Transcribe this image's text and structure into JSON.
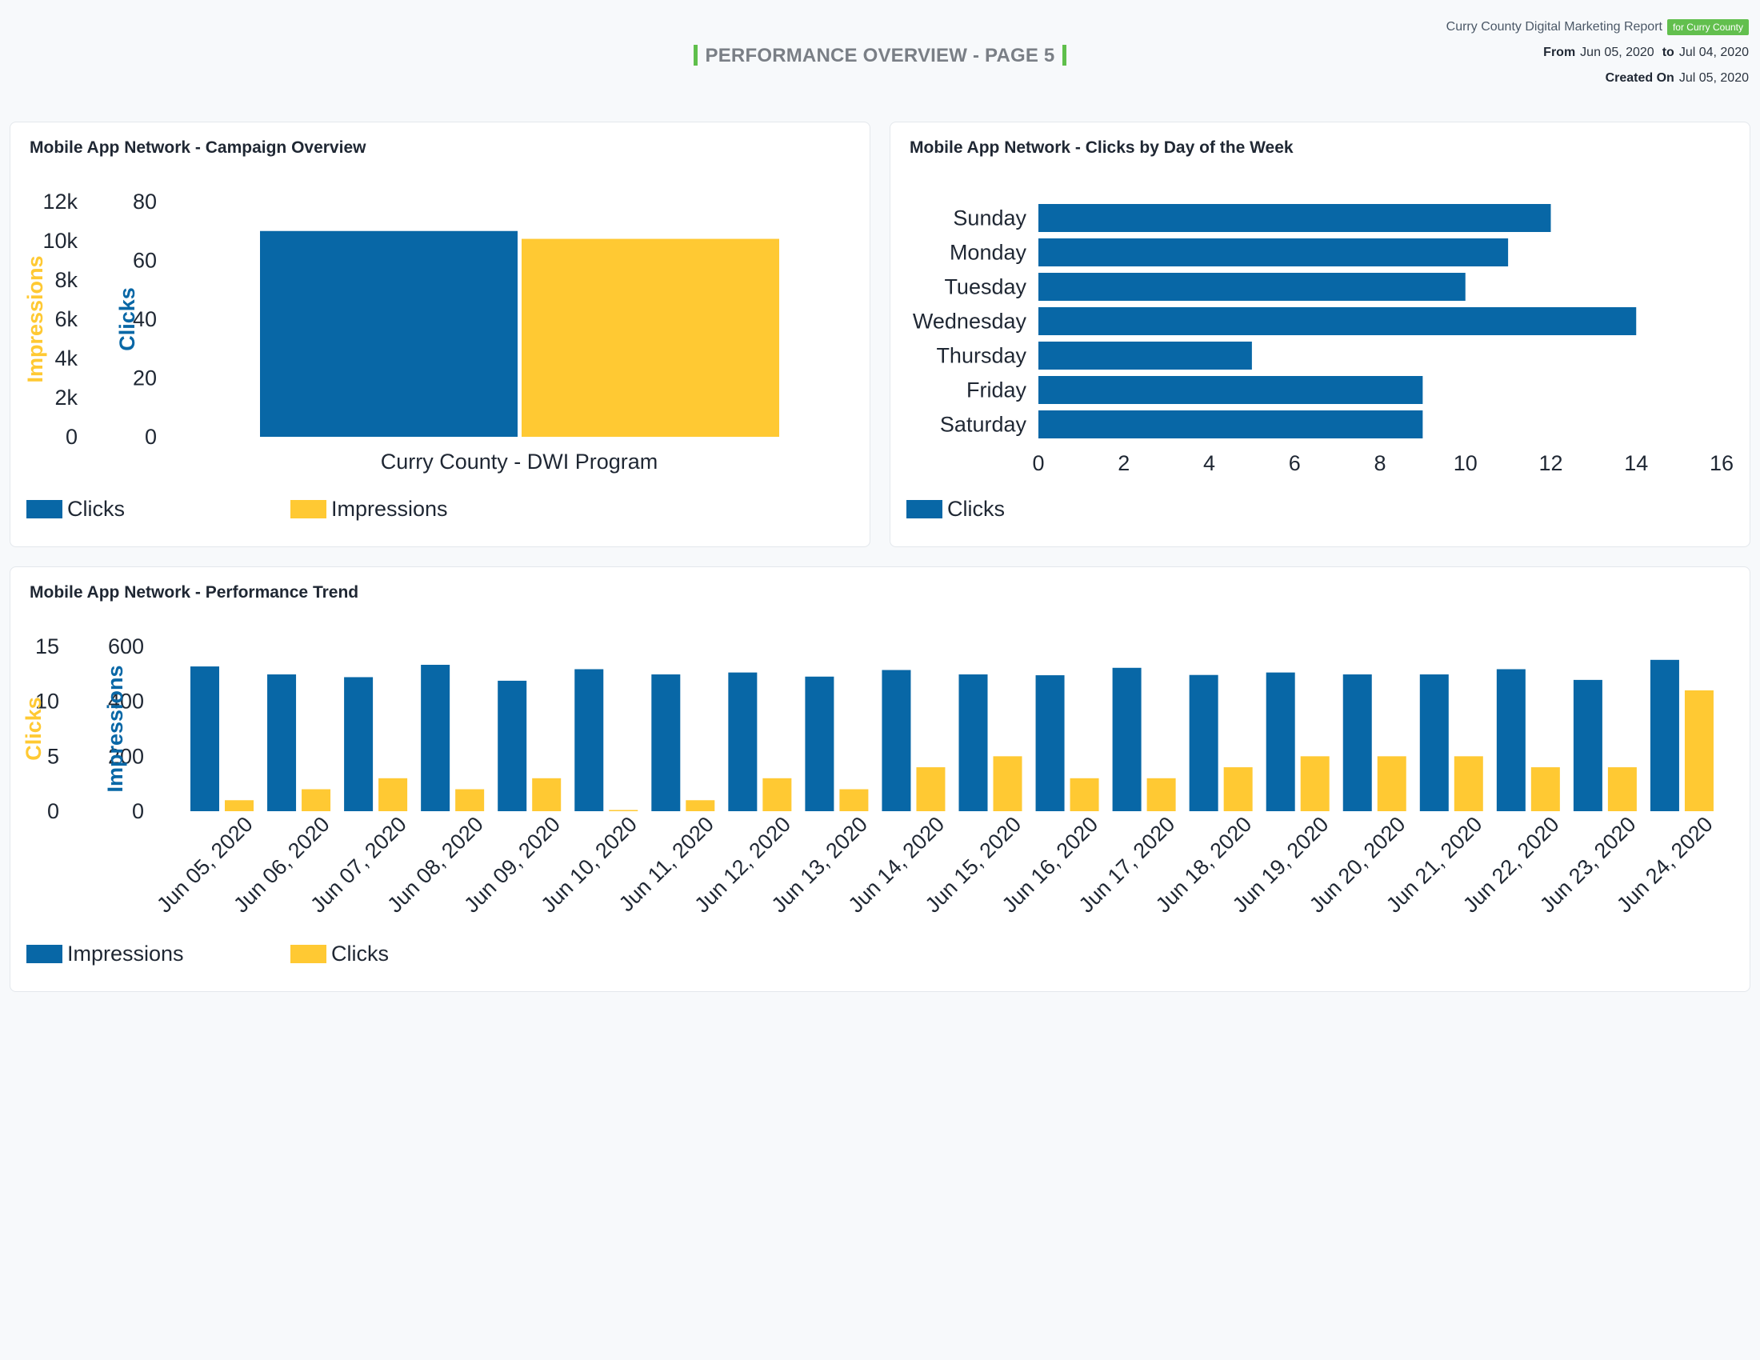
{
  "header": {
    "report_title": "Curry County Digital Marketing Report",
    "badge": "for Curry County",
    "from_label": "From",
    "from_date": "Jun 05, 2020",
    "to_label": "to",
    "to_date": "Jul 04, 2020",
    "created_label": "Created On",
    "created_date": "Jul 05, 2020"
  },
  "page_title": "PERFORMANCE OVERVIEW - PAGE 5",
  "colors": {
    "blue": "#0867a6",
    "yellow": "#ffc933",
    "green": "#62bf4e"
  },
  "cards": {
    "overview": {
      "title": "Mobile App Network - Campaign Overview"
    },
    "dow": {
      "title": "Mobile App Network - Clicks by Day of the Week"
    },
    "trend": {
      "title": "Mobile App Network - Performance Trend"
    }
  },
  "chart_data": [
    {
      "type": "bar",
      "title": "Mobile App Network - Campaign Overview",
      "categories": [
        "Curry County - DWI Program"
      ],
      "series": [
        {
          "name": "Clicks",
          "axis": "Clicks",
          "color": "#0867a6",
          "values": [
            70
          ]
        },
        {
          "name": "Impressions",
          "axis": "Impressions",
          "color": "#ffc933",
          "values": [
            10100
          ]
        }
      ],
      "axes": {
        "impressions": {
          "label": "Impressions",
          "ticks": [
            "0",
            "2k",
            "4k",
            "6k",
            "8k",
            "10k",
            "12k"
          ],
          "ylim": [
            0,
            12000
          ]
        },
        "clicks": {
          "label": "Clicks",
          "ticks": [
            "0",
            "20",
            "40",
            "60",
            "80"
          ],
          "ylim": [
            0,
            80
          ]
        }
      },
      "legend": [
        "Clicks",
        "Impressions"
      ],
      "legend_position": "bottom-left"
    },
    {
      "type": "bar",
      "orientation": "horizontal",
      "title": "Mobile App Network - Clicks by Day of the Week",
      "categories": [
        "Sunday",
        "Monday",
        "Tuesday",
        "Wednesday",
        "Thursday",
        "Friday",
        "Saturday"
      ],
      "series": [
        {
          "name": "Clicks",
          "color": "#0867a6",
          "values": [
            12,
            11,
            10,
            14,
            5,
            9,
            9
          ]
        }
      ],
      "xticks": [
        "0",
        "2",
        "4",
        "6",
        "8",
        "10",
        "12",
        "14",
        "16"
      ],
      "xlim": [
        0,
        16
      ],
      "legend": [
        "Clicks"
      ],
      "legend_position": "bottom-left"
    },
    {
      "type": "bar",
      "title": "Mobile App Network - Performance Trend",
      "categories": [
        "Jun 05, 2020",
        "Jun 06, 2020",
        "Jun 07, 2020",
        "Jun 08, 2020",
        "Jun 09, 2020",
        "Jun 10, 2020",
        "Jun 11, 2020",
        "Jun 12, 2020",
        "Jun 13, 2020",
        "Jun 14, 2020",
        "Jun 15, 2020",
        "Jun 16, 2020",
        "Jun 17, 2020",
        "Jun 18, 2020",
        "Jun 19, 2020",
        "Jun 20, 2020",
        "Jun 21, 2020",
        "Jun 22, 2020",
        "Jun 23, 2020",
        "Jun 24, 2020"
      ],
      "series": [
        {
          "name": "Impressions",
          "axis": "Impressions",
          "color": "#0867a6",
          "values": [
            527,
            498,
            488,
            533,
            475,
            517,
            498,
            505,
            490,
            514,
            498,
            495,
            522,
            496,
            505,
            498,
            498,
            517,
            478,
            551
          ]
        },
        {
          "name": "Clicks",
          "axis": "Clicks",
          "color": "#ffc933",
          "values": [
            1,
            2,
            3,
            2,
            3,
            0,
            1,
            3,
            2,
            4,
            5,
            3,
            3,
            4,
            5,
            5,
            5,
            4,
            4,
            11
          ]
        }
      ],
      "axes": {
        "clicks": {
          "label": "Clicks",
          "ticks": [
            "0",
            "5",
            "10",
            "15"
          ],
          "ylim": [
            0,
            15
          ]
        },
        "impressions": {
          "label": "Impressions",
          "ticks": [
            "0",
            "200",
            "400",
            "600"
          ],
          "ylim": [
            0,
            600
          ]
        }
      },
      "legend": [
        "Impressions",
        "Clicks"
      ],
      "legend_position": "bottom-left"
    }
  ]
}
